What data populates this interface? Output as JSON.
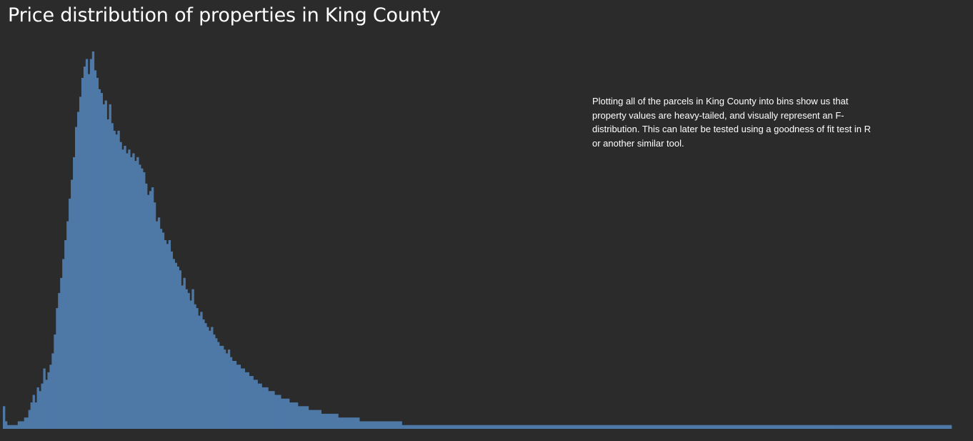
{
  "title": "Price distribution of properties in King County",
  "annotation": "Plotting all of the parcels in King County into bins show us that property values are heavy-tailed, and visually represent an F-distribution. This can later be tested using a goodness of fit test in R or another similar tool.",
  "colors": {
    "background": "#2b2b2b",
    "bar": "#4e79a7"
  },
  "chart_data": {
    "type": "bar",
    "title": "Price distribution of properties in King County",
    "xlabel": "",
    "ylabel": "",
    "grid": false,
    "bin_count": 440,
    "ylim": [
      0,
      1
    ],
    "note": "",
    "series": [
      {
        "values": [
          0.06,
          0.02,
          0.01,
          0.01,
          0.01,
          0.01,
          0.01,
          0.02,
          0.02,
          0.02,
          0.03,
          0.03,
          0.05,
          0.07,
          0.09,
          0.07,
          0.11,
          0.1,
          0.12,
          0.16,
          0.13,
          0.15,
          0.17,
          0.2,
          0.25,
          0.32,
          0.36,
          0.4,
          0.45,
          0.5,
          0.55,
          0.61,
          0.66,
          0.72,
          0.8,
          0.84,
          0.88,
          0.93,
          0.96,
          0.98,
          0.94,
          0.98,
          1.0,
          0.95,
          0.93,
          0.9,
          0.89,
          0.86,
          0.87,
          0.82,
          0.86,
          0.81,
          0.79,
          0.78,
          0.79,
          0.76,
          0.74,
          0.75,
          0.73,
          0.74,
          0.72,
          0.73,
          0.71,
          0.72,
          0.7,
          0.69,
          0.68,
          0.65,
          0.62,
          0.63,
          0.64,
          0.6,
          0.55,
          0.56,
          0.53,
          0.52,
          0.5,
          0.49,
          0.5,
          0.47,
          0.45,
          0.44,
          0.43,
          0.42,
          0.38,
          0.4,
          0.37,
          0.36,
          0.34,
          0.37,
          0.33,
          0.32,
          0.3,
          0.31,
          0.29,
          0.28,
          0.27,
          0.26,
          0.27,
          0.25,
          0.24,
          0.23,
          0.22,
          0.22,
          0.21,
          0.2,
          0.21,
          0.19,
          0.18,
          0.18,
          0.17,
          0.17,
          0.16,
          0.16,
          0.15,
          0.15,
          0.14,
          0.14,
          0.13,
          0.13,
          0.12,
          0.12,
          0.11,
          0.11,
          0.11,
          0.1,
          0.1,
          0.1,
          0.09,
          0.09,
          0.09,
          0.08,
          0.08,
          0.08,
          0.08,
          0.07,
          0.07,
          0.07,
          0.07,
          0.06,
          0.06,
          0.06,
          0.06,
          0.06,
          0.05,
          0.05,
          0.05,
          0.05,
          0.05,
          0.05,
          0.04,
          0.04,
          0.04,
          0.04,
          0.04,
          0.04,
          0.04,
          0.04,
          0.03,
          0.03,
          0.03,
          0.03,
          0.03,
          0.03,
          0.03,
          0.03,
          0.03,
          0.03,
          0.02,
          0.02,
          0.02,
          0.02,
          0.02,
          0.02,
          0.02,
          0.02,
          0.02,
          0.02,
          0.02,
          0.02,
          0.02,
          0.02,
          0.02,
          0.02,
          0.02,
          0.02,
          0.02,
          0.02,
          0.01,
          0.01,
          0.01,
          0.01,
          0.01,
          0.01,
          0.01,
          0.01,
          0.01,
          0.01,
          0.01,
          0.01,
          0.01,
          0.01,
          0.01,
          0.01,
          0.01,
          0.01,
          0.01,
          0.01,
          0.01,
          0.01,
          0.01,
          0.01,
          0.01,
          0.01,
          0.01,
          0.01,
          0.01,
          0.01,
          0.01,
          0.01,
          0.01,
          0.01,
          0.01,
          0.01,
          0.01,
          0.01,
          0.01,
          0.01,
          0.01,
          0.01,
          0.01,
          0.01,
          0.01,
          0.01,
          0.01,
          0.01,
          0.01,
          0.01,
          0.01,
          0.01,
          0.01,
          0.01,
          0.01,
          0.01,
          0.01,
          0.01,
          0.01,
          0.01,
          0.01,
          0.01,
          0.01,
          0.01,
          0.01,
          0.01,
          0.01,
          0.01,
          0.01,
          0.01,
          0.01,
          0.01,
          0.01,
          0.01,
          0.01,
          0.01,
          0.01,
          0.01,
          0.01,
          0.01,
          0.01,
          0.01,
          0.01,
          0.01,
          0.01,
          0.01,
          0.01,
          0.01,
          0.01,
          0.01,
          0.01,
          0.01,
          0.01,
          0.01,
          0.01,
          0.01,
          0.01,
          0.01,
          0.01,
          0.01,
          0.01,
          0.01,
          0.01,
          0.01,
          0.01,
          0.01,
          0.01,
          0.01,
          0.01,
          0.01,
          0.01,
          0.01,
          0.01,
          0.01,
          0.01,
          0.01,
          0.01,
          0.01,
          0.01,
          0.01,
          0.01,
          0.01,
          0.01,
          0.01,
          0.01,
          0.01,
          0.01,
          0.01,
          0.01,
          0.01,
          0.01,
          0.01,
          0.01,
          0.01,
          0.01,
          0.01,
          0.01,
          0.01,
          0.01,
          0.01,
          0.01,
          0.01,
          0.01,
          0.01,
          0.01,
          0.01,
          0.01,
          0.01,
          0.01,
          0.01,
          0.01,
          0.01,
          0.01,
          0.01,
          0.01,
          0.01,
          0.01,
          0.01,
          0.01,
          0.01,
          0.01,
          0.01,
          0.01,
          0.01,
          0.01,
          0.01,
          0.01,
          0.01,
          0.01,
          0.01,
          0.01,
          0.01,
          0.01,
          0.01,
          0.01,
          0.01,
          0.01,
          0.01,
          0.01,
          0.01,
          0.01,
          0.01,
          0.01,
          0.01,
          0.01,
          0.01,
          0.01,
          0.01,
          0.01,
          0.01,
          0.01,
          0.01,
          0.01,
          0.01,
          0.01,
          0.01,
          0.01,
          0.01,
          0.01,
          0.01,
          0.01,
          0.01,
          0.01,
          0.01,
          0.01,
          0.01,
          0.01,
          0.01,
          0.01,
          0.01,
          0.01,
          0.01,
          0.01,
          0.01,
          0.01,
          0.01,
          0.01,
          0.01,
          0.01,
          0.01,
          0.01,
          0.01,
          0.01,
          0.01,
          0.01,
          0.01,
          0.01,
          0.01,
          0.01,
          0.01,
          0.01,
          0.01,
          0.01,
          0.01,
          0.01,
          0.01,
          0.01,
          0.01,
          0.01,
          0.01,
          0.01,
          0.01,
          0.01,
          0.01,
          0.01,
          0.01,
          0.01,
          0.01,
          0.01,
          0.01,
          0.01,
          0.01,
          0.01,
          0.01,
          0.01,
          0.01,
          0.01,
          0.01,
          0.01
        ]
      }
    ]
  }
}
